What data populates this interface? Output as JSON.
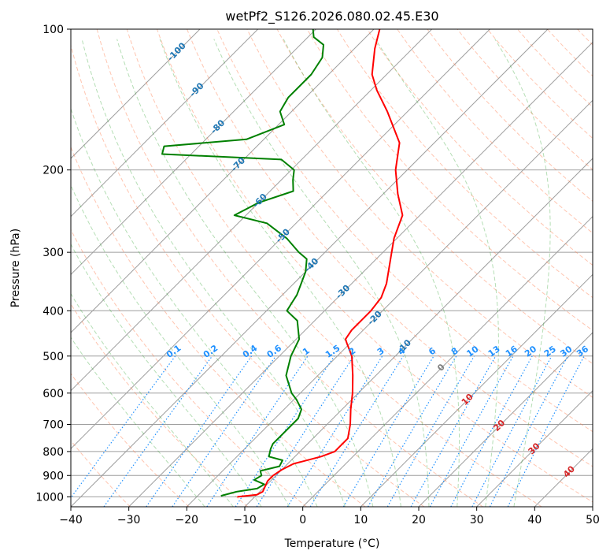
{
  "chart_data": {
    "type": "line",
    "title": "wetPf2_S126.2026.080.02.45.E30",
    "xlabel": "Temperature (°C)",
    "ylabel": "Pressure (hPa)",
    "xlim": [
      -40,
      50
    ],
    "ylim": [
      1050,
      100
    ],
    "yscale": "log",
    "skew": "45-degree skew-T",
    "x_ticks": [
      -40,
      -30,
      -20,
      -10,
      0,
      10,
      20,
      30,
      40,
      50
    ],
    "y_ticks": [
      100,
      200,
      300,
      400,
      500,
      600,
      700,
      800,
      900,
      1000
    ],
    "isotherms": [
      -100,
      -90,
      -80,
      -70,
      -60,
      -50,
      -40,
      -30,
      -20,
      -10,
      0,
      10,
      20,
      30,
      40,
      50
    ],
    "dry_adiabats_theta_k": [
      220,
      230,
      240,
      250,
      260,
      270,
      280,
      290,
      300,
      310,
      320,
      330,
      340,
      350,
      360,
      370,
      380,
      390,
      400,
      410,
      420,
      430,
      440,
      450,
      460,
      470,
      480,
      490,
      500,
      510,
      520,
      530,
      540,
      550
    ],
    "moist_adiabats_c": [
      -20,
      -15,
      -10,
      -5,
      0,
      5,
      10,
      15,
      20,
      25,
      30,
      35
    ],
    "mixing_ratio_lines_gkg": [
      0.1,
      0.2,
      0.4,
      0.6,
      1,
      1.5,
      2,
      3,
      4,
      6,
      8,
      10,
      13,
      16,
      20,
      25,
      30,
      36
    ],
    "mixing_ratio_label_pressure": 500,
    "isotherm_labels": [
      {
        "text": "-100",
        "t": -100,
        "p": 112
      },
      {
        "text": "-90",
        "t": -90,
        "p": 135
      },
      {
        "text": "-80",
        "t": -80,
        "p": 162
      },
      {
        "text": "-70",
        "t": -70,
        "p": 195
      },
      {
        "text": "-60",
        "t": -60,
        "p": 233
      },
      {
        "text": "-50",
        "t": -50,
        "p": 277
      },
      {
        "text": "-40",
        "t": -40,
        "p": 320
      },
      {
        "text": "-30",
        "t": -30,
        "p": 365
      },
      {
        "text": "-20",
        "t": -20,
        "p": 415
      },
      {
        "text": "-10",
        "t": -10,
        "p": 478
      },
      {
        "text": "0",
        "t": 0,
        "p": 530
      },
      {
        "text": "10",
        "t": 10,
        "p": 620
      },
      {
        "text": "20",
        "t": 20,
        "p": 705
      },
      {
        "text": "30",
        "t": 30,
        "p": 790
      },
      {
        "text": "40",
        "t": 40,
        "p": 885
      }
    ],
    "series": [
      {
        "name": "Temperature",
        "color": "#ff0000",
        "points": [
          [
            1000,
            -13.0
          ],
          [
            990,
            -10.0
          ],
          [
            975,
            -9.5
          ],
          [
            950,
            -10.0
          ],
          [
            925,
            -10.5
          ],
          [
            900,
            -10.5
          ],
          [
            875,
            -10.0
          ],
          [
            850,
            -9.0
          ],
          [
            820,
            -5.5
          ],
          [
            800,
            -4.0
          ],
          [
            750,
            -4.0
          ],
          [
            700,
            -6.0
          ],
          [
            650,
            -8.5
          ],
          [
            600,
            -11.0
          ],
          [
            550,
            -14.0
          ],
          [
            500,
            -17.5
          ],
          [
            470,
            -20.5
          ],
          [
            460,
            -21.5
          ],
          [
            440,
            -22.0
          ],
          [
            400,
            -22.0
          ],
          [
            375,
            -22.5
          ],
          [
            350,
            -24.0
          ],
          [
            300,
            -28.5
          ],
          [
            280,
            -30.5
          ],
          [
            250,
            -33.0
          ],
          [
            225,
            -37.5
          ],
          [
            200,
            -42.0
          ],
          [
            175,
            -46.0
          ],
          [
            150,
            -53.5
          ],
          [
            135,
            -59.0
          ],
          [
            125,
            -62.5
          ],
          [
            110,
            -66.5
          ],
          [
            100,
            -69.0
          ]
        ]
      },
      {
        "name": "Dewpoint",
        "color": "#008000",
        "points": [
          [
            995,
            -16.0
          ],
          [
            975,
            -14.0
          ],
          [
            960,
            -11.0
          ],
          [
            940,
            -10.5
          ],
          [
            920,
            -13.0
          ],
          [
            900,
            -12.5
          ],
          [
            880,
            -13.5
          ],
          [
            860,
            -11.0
          ],
          [
            835,
            -11.5
          ],
          [
            820,
            -14.5
          ],
          [
            790,
            -15.5
          ],
          [
            770,
            -16.0
          ],
          [
            730,
            -16.0
          ],
          [
            700,
            -16.0
          ],
          [
            680,
            -16.0
          ],
          [
            650,
            -17.0
          ],
          [
            620,
            -19.5
          ],
          [
            600,
            -21.5
          ],
          [
            550,
            -25.5
          ],
          [
            500,
            -28.0
          ],
          [
            460,
            -29.5
          ],
          [
            420,
            -33.0
          ],
          [
            400,
            -36.5
          ],
          [
            385,
            -37.0
          ],
          [
            370,
            -37.5
          ],
          [
            330,
            -40.0
          ],
          [
            310,
            -42.0
          ],
          [
            300,
            -44.5
          ],
          [
            280,
            -49.0
          ],
          [
            260,
            -55.0
          ],
          [
            250,
            -62.0
          ],
          [
            235,
            -60.0
          ],
          [
            222,
            -56.0
          ],
          [
            210,
            -58.0
          ],
          [
            200,
            -59.5
          ],
          [
            190,
            -63.5
          ],
          [
            185,
            -85.0
          ],
          [
            178,
            -86.0
          ],
          [
            172,
            -73.0
          ],
          [
            160,
            -69.0
          ],
          [
            150,
            -72.0
          ],
          [
            140,
            -73.0
          ],
          [
            125,
            -73.0
          ],
          [
            115,
            -74.0
          ],
          [
            108,
            -76.0
          ],
          [
            104,
            -79.0
          ],
          [
            100,
            -80.5
          ]
        ]
      }
    ],
    "colors": {
      "temperature": "#ff0000",
      "dewpoint": "#008000",
      "isotherm": "#1f77b4",
      "mixing_ratio": "#1e90ff",
      "dry_adiabat": "#ff7f50",
      "moist_adiabat": "#2ca02c",
      "grid": "#9e9e9e",
      "freezing_label": "#808080",
      "warm_isotherm_label": "#d62728"
    }
  }
}
